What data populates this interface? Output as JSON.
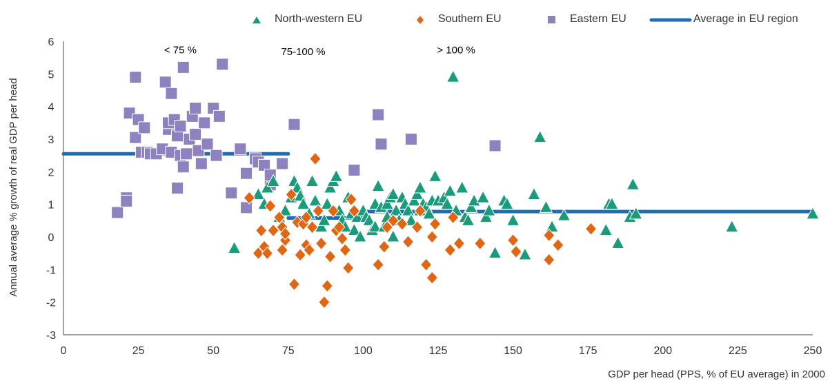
{
  "chart_data": {
    "type": "scatter",
    "title": "",
    "xlabel": "GDP per head (PPS, % of EU average) in 2000",
    "ylabel": "Annual average % growth of real GDP per head",
    "xlim": [
      0,
      250
    ],
    "ylim": [
      -3,
      6
    ],
    "xticks": [
      0,
      25,
      50,
      75,
      100,
      125,
      150,
      175,
      200,
      225,
      250
    ],
    "yticks": [
      -3,
      -2,
      -1,
      0,
      1,
      2,
      3,
      4,
      5,
      6
    ],
    "grid": false,
    "legend_position": "top",
    "annotations": [
      {
        "text": "< 75 %",
        "x": 39,
        "y": 5.8
      },
      {
        "text": "75-100 %",
        "x": 80,
        "y": 5.75
      },
      {
        "text": "> 100 %",
        "x": 131,
        "y": 5.8
      }
    ],
    "series": [
      {
        "name": "North-western EU",
        "marker": "triangle",
        "color": "#1a9c7c",
        "points": [
          [
            57,
            -0.35
          ],
          [
            65,
            1.3
          ],
          [
            67,
            1.0
          ],
          [
            68,
            1.5
          ],
          [
            70,
            1.7
          ],
          [
            72,
            0.6
          ],
          [
            74,
            0.8
          ],
          [
            76,
            1.2
          ],
          [
            77,
            1.7
          ],
          [
            78,
            1.5
          ],
          [
            79,
            1.25
          ],
          [
            80,
            1.0
          ],
          [
            82,
            0.7
          ],
          [
            83,
            1.7
          ],
          [
            84,
            1.1
          ],
          [
            86,
            0.3
          ],
          [
            87,
            0.5
          ],
          [
            88,
            1.0
          ],
          [
            89,
            1.5
          ],
          [
            90,
            1.7
          ],
          [
            91,
            1.85
          ],
          [
            92,
            0.8
          ],
          [
            93,
            0.5
          ],
          [
            94,
            0.3
          ],
          [
            95,
            1.2
          ],
          [
            96,
            0.7
          ],
          [
            97,
            0.2
          ],
          [
            98,
            0.6
          ],
          [
            99,
            0.0
          ],
          [
            100,
            0.8
          ],
          [
            101,
            0.6
          ],
          [
            102,
            0.5
          ],
          [
            103,
            0.2
          ],
          [
            104,
            0.3
          ],
          [
            104,
            1.0
          ],
          [
            105,
            1.55
          ],
          [
            106,
            0.9
          ],
          [
            107,
            0.3
          ],
          [
            108,
            0.6
          ],
          [
            108,
            1.0
          ],
          [
            109,
            1.2
          ],
          [
            110,
            0.0
          ],
          [
            110,
            1.3
          ],
          [
            111,
            0.8
          ],
          [
            112,
            0.5
          ],
          [
            113,
            1.2
          ],
          [
            114,
            1.0
          ],
          [
            115,
            0.8
          ],
          [
            116,
            0.5
          ],
          [
            117,
            1.1
          ],
          [
            118,
            1.3
          ],
          [
            119,
            0.8
          ],
          [
            119,
            1.5
          ],
          [
            120,
            1.0
          ],
          [
            121,
            0.9
          ],
          [
            122,
            0.7
          ],
          [
            123,
            1.1
          ],
          [
            124,
            1.85
          ],
          [
            125,
            1.1
          ],
          [
            127,
            1.2
          ],
          [
            128,
            1.0
          ],
          [
            129,
            1.4
          ],
          [
            130,
            4.9
          ],
          [
            131,
            0.8
          ],
          [
            133,
            1.5
          ],
          [
            134,
            0.6
          ],
          [
            135,
            0.5
          ],
          [
            136,
            0.9
          ],
          [
            137,
            1.1
          ],
          [
            140,
            1.2
          ],
          [
            141,
            0.6
          ],
          [
            142,
            0.8
          ],
          [
            144,
            -0.5
          ],
          [
            147,
            1.1
          ],
          [
            148,
            1.0
          ],
          [
            150,
            0.5
          ],
          [
            154,
            -0.55
          ],
          [
            157,
            1.3
          ],
          [
            159,
            3.05
          ],
          [
            161,
            0.9
          ],
          [
            163,
            0.3
          ],
          [
            167,
            0.65
          ],
          [
            181,
            0.2
          ],
          [
            182,
            1.0
          ],
          [
            183,
            1.0
          ],
          [
            185,
            -0.2
          ],
          [
            189,
            0.6
          ],
          [
            190,
            1.6
          ],
          [
            191,
            0.7
          ],
          [
            223,
            0.3
          ],
          [
            250,
            0.7
          ]
        ]
      },
      {
        "name": "Southern EU",
        "marker": "diamond",
        "color": "#e06613",
        "points": [
          [
            62,
            1.2
          ],
          [
            65,
            -0.5
          ],
          [
            66,
            0.2
          ],
          [
            67,
            -0.3
          ],
          [
            68,
            -0.5
          ],
          [
            69,
            0.95
          ],
          [
            70,
            0.2
          ],
          [
            72,
            0.6
          ],
          [
            73,
            -0.4
          ],
          [
            73,
            0.3
          ],
          [
            74,
            -0.1
          ],
          [
            74,
            0.1
          ],
          [
            76,
            1.3
          ],
          [
            77,
            -1.45
          ],
          [
            78,
            0.45
          ],
          [
            79,
            -0.55
          ],
          [
            80,
            0.4
          ],
          [
            81,
            0.6
          ],
          [
            81,
            -0.25
          ],
          [
            82,
            -0.4
          ],
          [
            83,
            0.3
          ],
          [
            84,
            2.4
          ],
          [
            85,
            0.8
          ],
          [
            86,
            -0.2
          ],
          [
            87,
            -2.0
          ],
          [
            88,
            -1.5
          ],
          [
            89,
            -0.6
          ],
          [
            90,
            0.8
          ],
          [
            91,
            0.2
          ],
          [
            92,
            0.3
          ],
          [
            93,
            -0.05
          ],
          [
            94,
            -0.4
          ],
          [
            95,
            -0.95
          ],
          [
            96,
            1.15
          ],
          [
            97,
            0.8
          ],
          [
            105,
            -0.85
          ],
          [
            107,
            -0.3
          ],
          [
            108,
            0.3
          ],
          [
            110,
            0.5
          ],
          [
            113,
            0.4
          ],
          [
            115,
            -0.15
          ],
          [
            118,
            0.3
          ],
          [
            119,
            0.8
          ],
          [
            121,
            -0.85
          ],
          [
            123,
            -1.25
          ],
          [
            123,
            0.0
          ],
          [
            124,
            0.4
          ],
          [
            129,
            -0.4
          ],
          [
            130,
            0.6
          ],
          [
            132,
            -0.2
          ],
          [
            139,
            -0.2
          ],
          [
            150,
            -0.1
          ],
          [
            151,
            -0.45
          ],
          [
            162,
            -0.7
          ],
          [
            162,
            0.05
          ],
          [
            165,
            -0.25
          ],
          [
            176,
            0.25
          ]
        ]
      },
      {
        "name": "Eastern EU",
        "marker": "square",
        "color": "#8e81c0",
        "points": [
          [
            18,
            0.75
          ],
          [
            21,
            1.2
          ],
          [
            21,
            1.1
          ],
          [
            22,
            3.8
          ],
          [
            24,
            4.9
          ],
          [
            24,
            3.05
          ],
          [
            25,
            3.6
          ],
          [
            26,
            2.6
          ],
          [
            27,
            3.35
          ],
          [
            28,
            2.6
          ],
          [
            29,
            2.55
          ],
          [
            31,
            2.55
          ],
          [
            33,
            2.7
          ],
          [
            34,
            4.75
          ],
          [
            35,
            3.3
          ],
          [
            35,
            3.5
          ],
          [
            36,
            2.6
          ],
          [
            36,
            4.4
          ],
          [
            37,
            3.6
          ],
          [
            38,
            3.1
          ],
          [
            38,
            1.5
          ],
          [
            39,
            2.5
          ],
          [
            39,
            3.4
          ],
          [
            40,
            5.2
          ],
          [
            40,
            2.15
          ],
          [
            41,
            2.55
          ],
          [
            42,
            3.0
          ],
          [
            43,
            3.7
          ],
          [
            44,
            3.95
          ],
          [
            44,
            3.15
          ],
          [
            45,
            2.65
          ],
          [
            46,
            2.25
          ],
          [
            47,
            3.5
          ],
          [
            48,
            2.85
          ],
          [
            50,
            3.95
          ],
          [
            51,
            2.5
          ],
          [
            52,
            3.7
          ],
          [
            53,
            5.3
          ],
          [
            56,
            1.35
          ],
          [
            59,
            2.7
          ],
          [
            61,
            1.95
          ],
          [
            61,
            0.9
          ],
          [
            64,
            2.4
          ],
          [
            65,
            2.3
          ],
          [
            67,
            2.2
          ],
          [
            69,
            1.6
          ],
          [
            69,
            1.9
          ],
          [
            73,
            2.25
          ],
          [
            77,
            3.45
          ],
          [
            97,
            2.05
          ],
          [
            105,
            3.75
          ],
          [
            106,
            2.85
          ],
          [
            116,
            3.0
          ],
          [
            144,
            2.8
          ]
        ]
      },
      {
        "name": "Average in EU region",
        "marker": "line",
        "color": "#1b6db8",
        "segments": [
          {
            "x": [
              0,
              75
            ],
            "y": 2.55
          },
          {
            "x": [
              75,
              100
            ],
            "y": 0.58
          },
          {
            "x": [
              100,
              250
            ],
            "y": 0.78
          }
        ]
      }
    ]
  }
}
